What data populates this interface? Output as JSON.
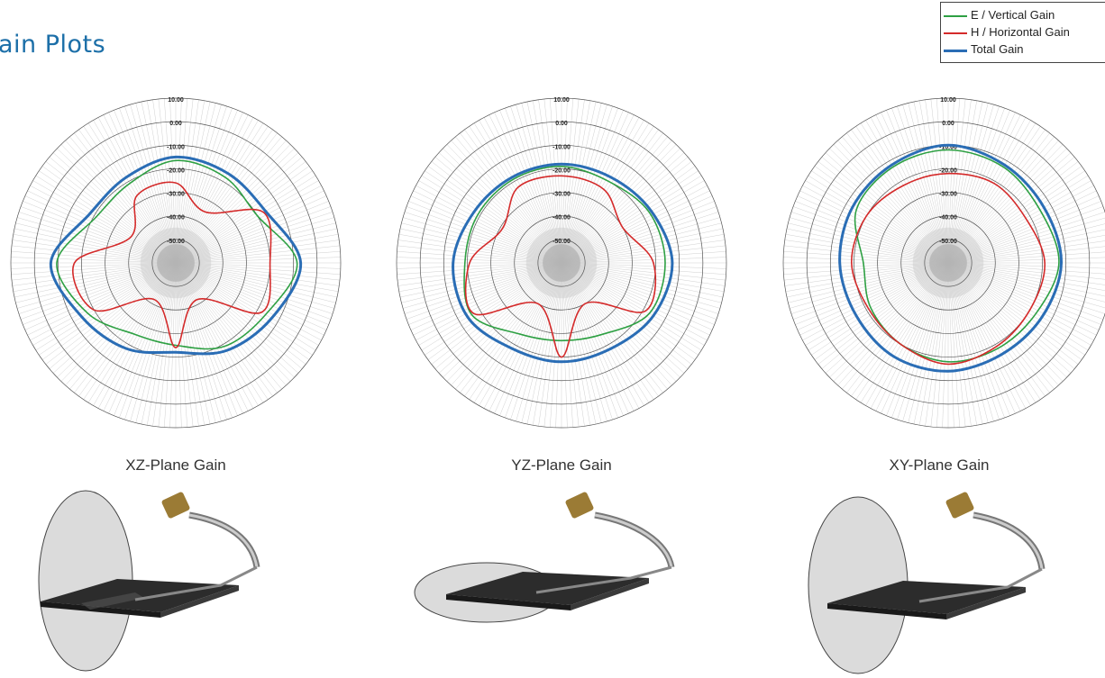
{
  "page": {
    "title": "ain Plots"
  },
  "colors": {
    "vertical": "#2ea043",
    "horizontal": "#d42a2a",
    "total": "#2a6db5",
    "grid": "#555555",
    "spoke": "#bbbbbb"
  },
  "legend": {
    "items": [
      {
        "label": "E / Vertical Gain",
        "color_key": "vertical"
      },
      {
        "label": "H / Horizontal Gain",
        "color_key": "horizontal"
      },
      {
        "label": "Total Gain",
        "color_key": "total"
      }
    ]
  },
  "chart_data": [
    {
      "type": "polar-line",
      "plane": "XZ",
      "title": "XZ-Plane Gain",
      "radial_ticks": [
        "10.00",
        "0.00",
        "-10.00",
        "-20.00",
        "-30.00",
        "-40.00",
        "-50.00"
      ],
      "rlim": [
        -60,
        10
      ],
      "angles_deg": [
        0,
        30,
        60,
        90,
        120,
        150,
        180,
        210,
        240,
        270,
        300,
        330
      ],
      "series": [
        {
          "name": "E / Vertical Gain",
          "color_key": "vertical",
          "values": [
            -16.5,
            -18,
            -20,
            -8.5,
            -16,
            -19,
            -25,
            -25,
            -17,
            -9.5,
            -21,
            -21
          ]
        },
        {
          "name": "H / Horizontal Gain",
          "color_key": "horizontal",
          "values": [
            -26,
            -35,
            -17,
            -20,
            -18,
            -42,
            -24,
            -42,
            -20,
            -17,
            -38,
            -27
          ]
        },
        {
          "name": "Total Gain",
          "color_key": "total",
          "values": [
            -15,
            -16,
            -16,
            -7,
            -13,
            -17,
            -22,
            -18,
            -14,
            -7,
            -18,
            -18
          ]
        }
      ]
    },
    {
      "type": "polar-line",
      "plane": "YZ",
      "title": "YZ-Plane Gain",
      "radial_ticks": [
        "10.00",
        "0.00",
        "-10.00",
        "-20.00",
        "-30.00",
        "-40.00",
        "-50.00"
      ],
      "rlim": [
        -60,
        10
      ],
      "angles_deg": [
        0,
        30,
        60,
        90,
        120,
        150,
        180,
        210,
        240,
        270,
        300,
        330
      ],
      "series": [
        {
          "name": "E / Vertical Gain",
          "color_key": "vertical",
          "values": [
            -19,
            -20,
            -17,
            -16,
            -17,
            -25,
            -27,
            -25,
            -16,
            -19,
            -19,
            -19
          ]
        },
        {
          "name": "H / Horizontal Gain",
          "color_key": "horizontal",
          "values": [
            -23,
            -24,
            -30,
            -21,
            -19,
            -40,
            -20,
            -40,
            -17,
            -21,
            -31,
            -23
          ]
        },
        {
          "name": "Total Gain",
          "color_key": "total",
          "values": [
            -18,
            -18,
            -16,
            -13,
            -15,
            -18,
            -18,
            -18,
            -14,
            -14,
            -17,
            -18
          ]
        }
      ]
    },
    {
      "type": "polar-line",
      "plane": "XY",
      "title": "XY-Plane Gain",
      "radial_ticks": [
        "10.00",
        "0.00",
        "-10.00",
        "-20.00",
        "-30.00",
        "-40.00",
        "-50.00"
      ],
      "rlim": [
        -60,
        10
      ],
      "angles_deg": [
        0,
        30,
        60,
        90,
        120,
        150,
        180,
        210,
        240,
        270,
        300,
        330
      ],
      "series": [
        {
          "name": "E / Vertical Gain",
          "color_key": "vertical",
          "values": [
            -12,
            -13,
            -15,
            -13,
            -17,
            -18,
            -18,
            -20,
            -22,
            -24,
            -15,
            -13
          ]
        },
        {
          "name": "H / Horizontal Gain",
          "color_key": "horizontal",
          "values": [
            -22,
            -21,
            -22,
            -19,
            -20,
            -19,
            -17,
            -20,
            -21,
            -19,
            -20,
            -22
          ]
        },
        {
          "name": "Total Gain",
          "color_key": "total",
          "values": [
            -10,
            -12,
            -13,
            -12,
            -14,
            -15,
            -14,
            -14,
            -15,
            -14,
            -13,
            -12
          ]
        }
      ]
    }
  ]
}
